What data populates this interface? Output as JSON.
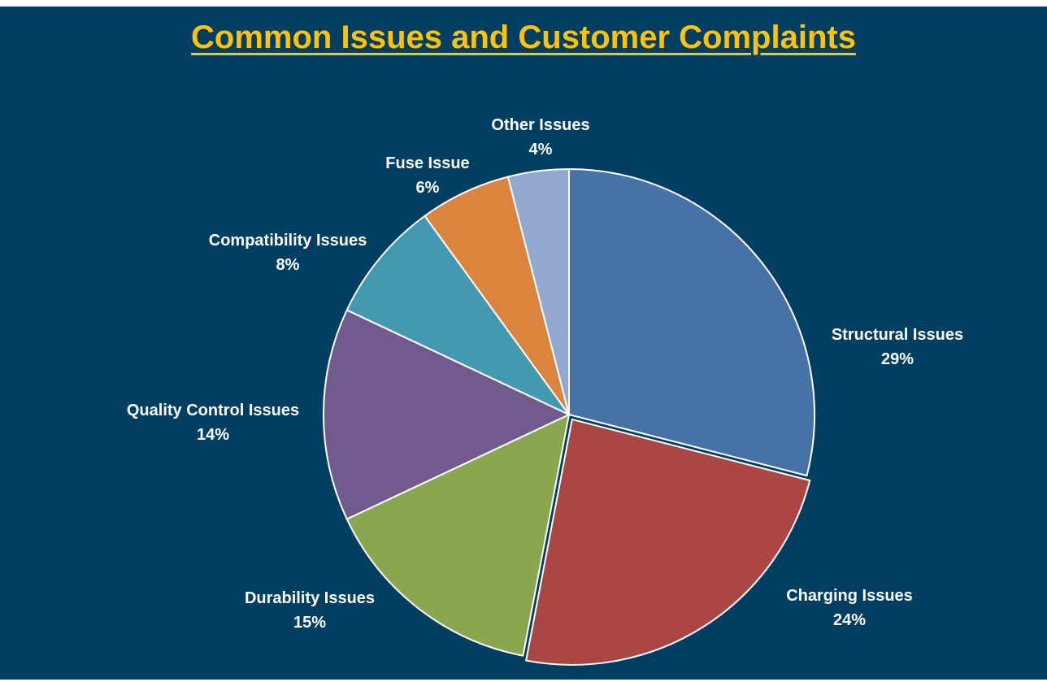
{
  "chart_data": {
    "type": "pie",
    "title": "Common Issues and Customer Complaints",
    "labels": [
      "Structural Issues",
      "Charging Issues",
      "Durability Issues",
      "Quality Control Issues",
      "Compatibility Issues",
      "Fuse Issue",
      "Other Issues"
    ],
    "values": [
      29,
      24,
      15,
      14,
      8,
      6,
      4
    ],
    "value_labels": [
      "29%",
      "24%",
      "15%",
      "14%",
      "8%",
      "6%",
      "4%"
    ],
    "colors": [
      "#4672a7",
      "#aa4744",
      "#8aa64e",
      "#715a8e",
      "#4299b0",
      "#db843d",
      "#93a8cf"
    ],
    "start_angle": "12 o'clock",
    "direction": "clockwise",
    "slice_border_color": "#ffffff",
    "legend": "none"
  },
  "colors": {
    "background": "#003f62",
    "title": "#fec20a",
    "labels": "#ffffff"
  }
}
